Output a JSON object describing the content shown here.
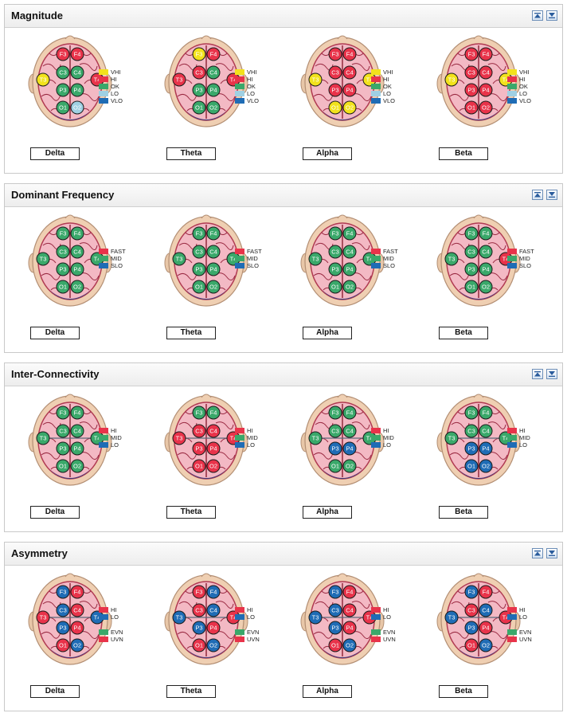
{
  "colors": {
    "vhi": "#f2e21c",
    "hi": "#e8334a",
    "ok": "#3aa86a",
    "lo_light": "#9fd0e3",
    "vlo": "#1f6cb5",
    "fast": "#e8334a",
    "mid": "#3aa86a",
    "slo": "#1f6cb5",
    "lo": "#1f6cb5",
    "evn": "#3aa86a",
    "uvn": "#e8334a"
  },
  "header_icons": {
    "up": "collapse-up-icon",
    "down": "collapse-down-icon"
  },
  "bands": [
    "Delta",
    "Theta",
    "Alpha",
    "Beta"
  ],
  "panels": [
    {
      "title": "Magnitude",
      "legend": [
        {
          "label": "VHI",
          "color": "#f2e21c"
        },
        {
          "label": "HI",
          "color": "#e8334a"
        },
        {
          "label": "OK",
          "color": "#3aa86a"
        },
        {
          "label": "LO",
          "color": "#9fd0e3"
        },
        {
          "label": "VLO",
          "color": "#1f6cb5"
        }
      ],
      "maps": [
        {
          "F3": "hi",
          "F4": "hi",
          "C3": "ok",
          "C4": "ok",
          "T3": "vhi",
          "T4": "hi",
          "P3": "ok",
          "P4": "ok",
          "O1": "ok",
          "O2": "lo_light"
        },
        {
          "F3": "vhi",
          "F4": "hi",
          "C3": "hi",
          "C4": "ok",
          "T3": "hi",
          "T4": "hi",
          "P3": "ok",
          "P4": "ok",
          "O1": "ok",
          "O2": "ok"
        },
        {
          "F3": "hi",
          "F4": "hi",
          "C3": "hi",
          "C4": "hi",
          "T3": "vhi",
          "T4": "vhi",
          "P3": "hi",
          "P4": "hi",
          "O1": "vhi",
          "O2": "vhi"
        },
        {
          "F3": "hi",
          "F4": "hi",
          "C3": "hi",
          "C4": "hi",
          "T3": "vhi",
          "T4": "vhi",
          "P3": "hi",
          "P4": "hi",
          "O1": "hi",
          "O2": "hi"
        }
      ]
    },
    {
      "title": "Dominant Frequency",
      "legend": [
        {
          "label": "FAST",
          "color": "#e8334a"
        },
        {
          "label": "MID",
          "color": "#3aa86a"
        },
        {
          "label": "SLO",
          "color": "#1f6cb5"
        }
      ],
      "maps": [
        {
          "F3": "ok",
          "F4": "ok",
          "C3": "ok",
          "C4": "ok",
          "T3": "ok",
          "T4": "ok",
          "P3": "ok",
          "P4": "ok",
          "O1": "ok",
          "O2": "ok"
        },
        {
          "F3": "ok",
          "F4": "ok",
          "C3": "ok",
          "C4": "ok",
          "T3": "ok",
          "T4": "ok",
          "P3": "ok",
          "P4": "ok",
          "O1": "ok",
          "O2": "ok"
        },
        {
          "F3": "ok",
          "F4": "ok",
          "C3": "ok",
          "C4": "ok",
          "T3": "ok",
          "T4": "ok",
          "P3": "ok",
          "P4": "ok",
          "O1": "ok",
          "O2": "ok"
        },
        {
          "F3": "ok",
          "F4": "ok",
          "C3": "ok",
          "C4": "ok",
          "T3": "ok",
          "T4": "hi",
          "P3": "ok",
          "P4": "ok",
          "O1": "ok",
          "O2": "ok"
        }
      ]
    },
    {
      "title": "Inter-Connectivity",
      "legend": [
        {
          "label": "HI",
          "color": "#e8334a"
        },
        {
          "label": "MID",
          "color": "#3aa86a"
        },
        {
          "label": "LO",
          "color": "#1f6cb5"
        }
      ],
      "maps": [
        {
          "F3": "ok",
          "F4": "ok",
          "C3": "ok",
          "C4": "ok",
          "T3": "ok",
          "T4": "ok",
          "P3": "ok",
          "P4": "ok",
          "O1": "ok",
          "O2": "ok"
        },
        {
          "F3": "ok",
          "F4": "ok",
          "C3": "hi",
          "C4": "hi",
          "T3": "hi",
          "T4": "hi",
          "P3": "hi",
          "P4": "hi",
          "O1": "hi",
          "O2": "hi"
        },
        {
          "F3": "ok",
          "F4": "ok",
          "C3": "ok",
          "C4": "ok",
          "T3": "ok",
          "T4": "ok",
          "P3": "vlo",
          "P4": "vlo",
          "O1": "ok",
          "O2": "ok"
        },
        {
          "F3": "ok",
          "F4": "ok",
          "C3": "ok",
          "C4": "ok",
          "T3": "ok",
          "T4": "ok",
          "P3": "vlo",
          "P4": "vlo",
          "O1": "vlo",
          "O2": "vlo"
        }
      ]
    },
    {
      "title": "Asymmetry",
      "legend": [
        {
          "label": "HI",
          "color": "#e8334a"
        },
        {
          "label": "LO",
          "color": "#1f6cb5"
        },
        {
          "label": "EVN",
          "color": "#3aa86a",
          "gap": true
        },
        {
          "label": "UVN",
          "color": "#e8334a"
        }
      ],
      "maps": [
        {
          "F3": "vlo",
          "F4": "hi",
          "C3": "vlo",
          "C4": "hi",
          "T3": "hi",
          "T4": "vlo",
          "P3": "vlo",
          "P4": "hi",
          "O1": "hi",
          "O2": "vlo"
        },
        {
          "F3": "hi",
          "F4": "vlo",
          "C3": "hi",
          "C4": "vlo",
          "T3": "vlo",
          "T4": "hi",
          "P3": "vlo",
          "P4": "hi",
          "O1": "hi",
          "O2": "vlo"
        },
        {
          "F3": "vlo",
          "F4": "hi",
          "C3": "vlo",
          "C4": "hi",
          "T3": "vlo",
          "T4": "hi",
          "P3": "vlo",
          "P4": "hi",
          "O1": "hi",
          "O2": "vlo"
        },
        {
          "F3": "vlo",
          "F4": "hi",
          "C3": "hi",
          "C4": "vlo",
          "T3": "vlo",
          "T4": "hi",
          "P3": "vlo",
          "P4": "hi",
          "O1": "hi",
          "O2": "vlo"
        }
      ]
    }
  ]
}
